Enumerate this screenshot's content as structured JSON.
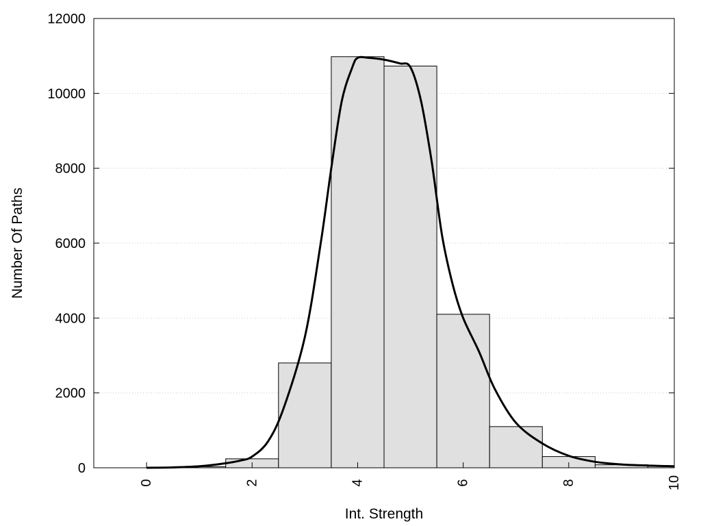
{
  "chart_data": {
    "type": "bar",
    "xlabel": "Int. Strength",
    "ylabel": "Number Of Paths",
    "xlim": [
      -1,
      10
    ],
    "ylim": [
      0,
      12000
    ],
    "x_ticks": [
      0,
      2,
      4,
      6,
      8,
      10
    ],
    "y_ticks": [
      0,
      2000,
      4000,
      6000,
      8000,
      10000,
      12000
    ],
    "grid": "horizontal dotted",
    "bar_color": "#e0e0e0",
    "bar_width": 1,
    "bars": [
      {
        "x": 0,
        "value": 0
      },
      {
        "x": 1,
        "value": 30
      },
      {
        "x": 2,
        "value": 240
      },
      {
        "x": 3,
        "value": 2800
      },
      {
        "x": 4,
        "value": 10980
      },
      {
        "x": 5,
        "value": 10730
      },
      {
        "x": 6,
        "value": 4100
      },
      {
        "x": 7,
        "value": 1100
      },
      {
        "x": 8,
        "value": 300
      },
      {
        "x": 9,
        "value": 80
      },
      {
        "x": 10,
        "value": 40
      }
    ],
    "curve": {
      "x": [
        0,
        0.5,
        1,
        1.5,
        1.8,
        2,
        2.3,
        2.6,
        3,
        3.3,
        3.5,
        3.7,
        3.9,
        4,
        4.2,
        4.5,
        4.8,
        5,
        5.2,
        5.4,
        5.6,
        5.8,
        6,
        6.3,
        6.6,
        7,
        7.5,
        8,
        8.5,
        9,
        9.5,
        10
      ],
      "y": [
        0,
        10,
        40,
        120,
        200,
        300,
        700,
        1600,
        3500,
        6000,
        8000,
        9800,
        10700,
        10950,
        10950,
        10900,
        10800,
        10700,
        9800,
        8200,
        6200,
        4900,
        4000,
        3100,
        2100,
        1200,
        650,
        320,
        160,
        90,
        60,
        40
      ],
      "color": "#000000"
    }
  }
}
